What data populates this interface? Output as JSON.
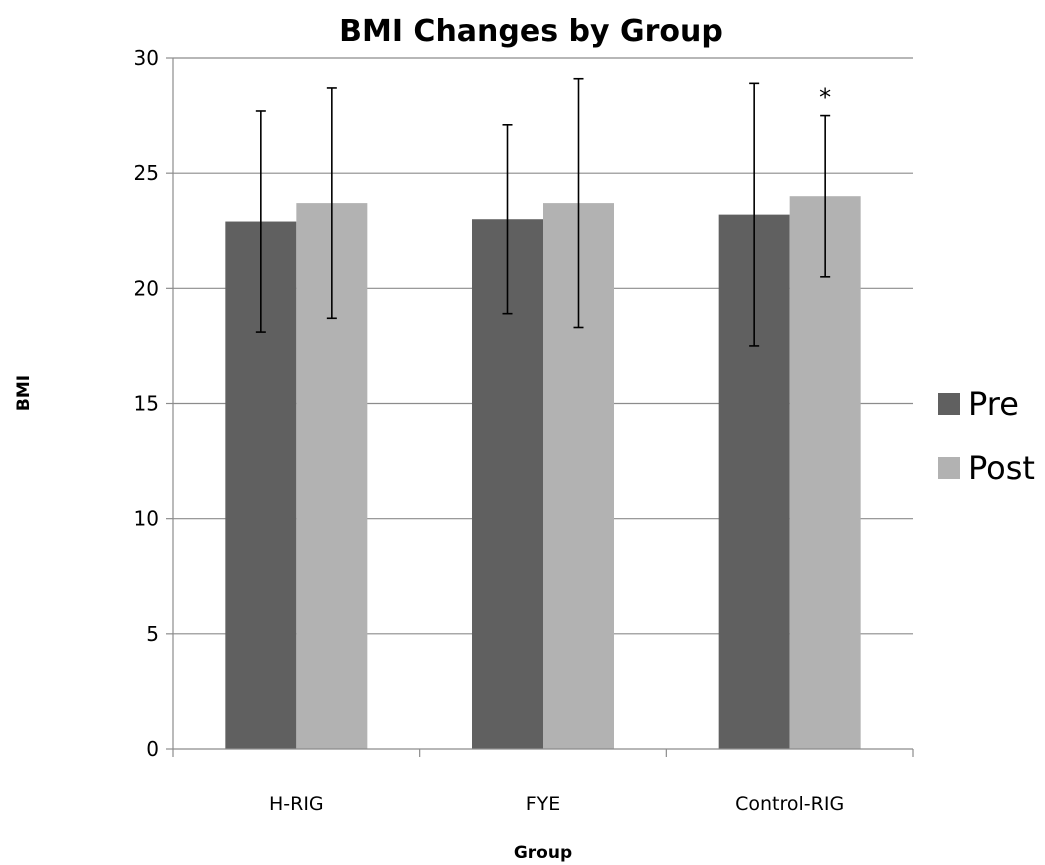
{
  "chart_data": {
    "type": "bar",
    "title": "BMI Changes by Group",
    "xlabel": "Group",
    "ylabel": "BMI",
    "categories": [
      "H-RIG",
      "FYE",
      "Control-RIG"
    ],
    "series": [
      {
        "name": "Pre",
        "color": "#606060",
        "values": [
          22.9,
          23.0,
          23.2
        ],
        "error_low": [
          18.1,
          18.9,
          17.5
        ],
        "error_high": [
          27.7,
          27.1,
          28.9
        ]
      },
      {
        "name": "Post",
        "color": "#b2b2b2",
        "values": [
          23.7,
          23.7,
          24.0
        ],
        "error_low": [
          18.7,
          18.3,
          20.5
        ],
        "error_high": [
          28.7,
          29.1,
          27.5
        ]
      }
    ],
    "ylim": [
      0,
      30
    ],
    "yticks": [
      "0",
      "5",
      "10",
      "15",
      "20",
      "25",
      "30"
    ],
    "grid": true,
    "legend_position": "right",
    "annotations": [
      {
        "text": "*",
        "category": "Control-RIG",
        "series": "Post"
      }
    ]
  }
}
